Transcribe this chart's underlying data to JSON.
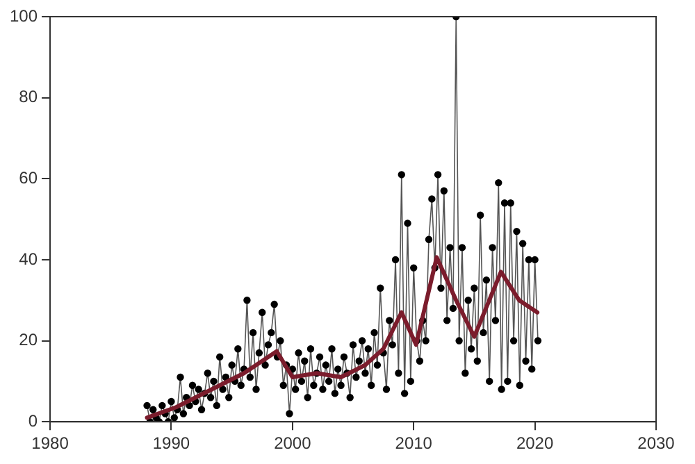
{
  "chart_data": {
    "type": "line",
    "xlim": [
      1980,
      2030
    ],
    "xticks": [
      1980,
      1990,
      2000,
      2010,
      2020,
      2030
    ],
    "ylim": [
      0,
      100
    ],
    "yticks": [
      0,
      20,
      40,
      60,
      80,
      100
    ],
    "grid": false,
    "legend": false,
    "series": [
      {
        "marker": "circle",
        "color": "#000000",
        "x": [
          1988,
          1988.25,
          1988.5,
          1988.75,
          1989,
          1989.25,
          1989.5,
          1989.75,
          1990,
          1990.25,
          1990.5,
          1990.75,
          1991,
          1991.25,
          1991.5,
          1991.75,
          1992,
          1992.25,
          1992.5,
          1992.75,
          1993,
          1993.25,
          1993.5,
          1993.75,
          1994,
          1994.25,
          1994.5,
          1994.75,
          1995,
          1995.25,
          1995.5,
          1995.75,
          1996,
          1996.25,
          1996.5,
          1996.75,
          1997,
          1997.25,
          1997.5,
          1997.75,
          1998,
          1998.25,
          1998.5,
          1998.75,
          1999,
          1999.25,
          1999.5,
          1999.75,
          2000,
          2000.25,
          2000.5,
          2000.75,
          2001,
          2001.25,
          2001.5,
          2001.75,
          2002,
          2002.25,
          2002.5,
          2002.75,
          2003,
          2003.25,
          2003.5,
          2003.75,
          2004,
          2004.25,
          2004.5,
          2004.75,
          2005,
          2005.25,
          2005.5,
          2005.75,
          2006,
          2006.25,
          2006.5,
          2006.75,
          2007,
          2007.25,
          2007.5,
          2007.75,
          2008,
          2008.25,
          2008.5,
          2008.75,
          2009,
          2009.25,
          2009.5,
          2009.75,
          2010,
          2010.25,
          2010.5,
          2010.75,
          2011,
          2011.25,
          2011.5,
          2011.75,
          2012,
          2012.25,
          2012.5,
          2012.75,
          2013,
          2013.25,
          2013.5,
          2013.75,
          2014,
          2014.25,
          2014.5,
          2014.75,
          2015,
          2015.25,
          2015.5,
          2015.75,
          2016,
          2016.25,
          2016.5,
          2016.75,
          2017,
          2017.25,
          2017.5,
          2017.75,
          2018,
          2018.25,
          2018.5,
          2018.75,
          2019,
          2019.25,
          2019.5,
          2019.75,
          2020,
          2020.25
        ],
        "values": [
          4,
          0,
          3,
          1,
          0,
          4,
          2,
          0,
          5,
          1,
          3,
          11,
          2,
          6,
          4,
          9,
          5,
          8,
          3,
          7,
          12,
          6,
          10,
          4,
          16,
          8,
          11,
          6,
          14,
          10,
          18,
          9,
          13,
          30,
          11,
          22,
          8,
          17,
          27,
          14,
          19,
          22,
          29,
          16,
          20,
          9,
          14,
          2,
          13,
          8,
          17,
          10,
          15,
          6,
          18,
          9,
          12,
          16,
          8,
          14,
          10,
          18,
          7,
          13,
          9,
          16,
          12,
          6,
          19,
          11,
          15,
          20,
          12,
          18,
          9,
          22,
          14,
          33,
          17,
          8,
          25,
          19,
          40,
          12,
          61,
          7,
          49,
          10,
          38,
          20,
          15,
          25,
          20,
          45,
          55,
          38,
          61,
          33,
          57,
          25,
          43,
          28,
          100,
          20,
          43,
          12,
          30,
          18,
          33,
          15,
          51,
          22,
          35,
          10,
          43,
          25,
          59,
          8,
          54,
          10,
          54,
          20,
          47,
          9,
          44,
          15,
          40,
          13,
          40,
          20
        ]
      },
      {
        "marker": "none",
        "color": "#7b1c2c",
        "x": [
          1988,
          1990.4,
          1992,
          1994,
          1996,
          1997.5,
          1998.7,
          2000,
          2002,
          2004,
          2006,
          2007.5,
          2009,
          2010.2,
          2011.9,
          2013.5,
          2015,
          2017.2,
          2018.7,
          2020.2
        ],
        "values": [
          1,
          3.6,
          6,
          9,
          12,
          15,
          17.4,
          11,
          12,
          11,
          14,
          18,
          27,
          19,
          40.6,
          30,
          21,
          37,
          30,
          27
        ]
      }
    ]
  }
}
